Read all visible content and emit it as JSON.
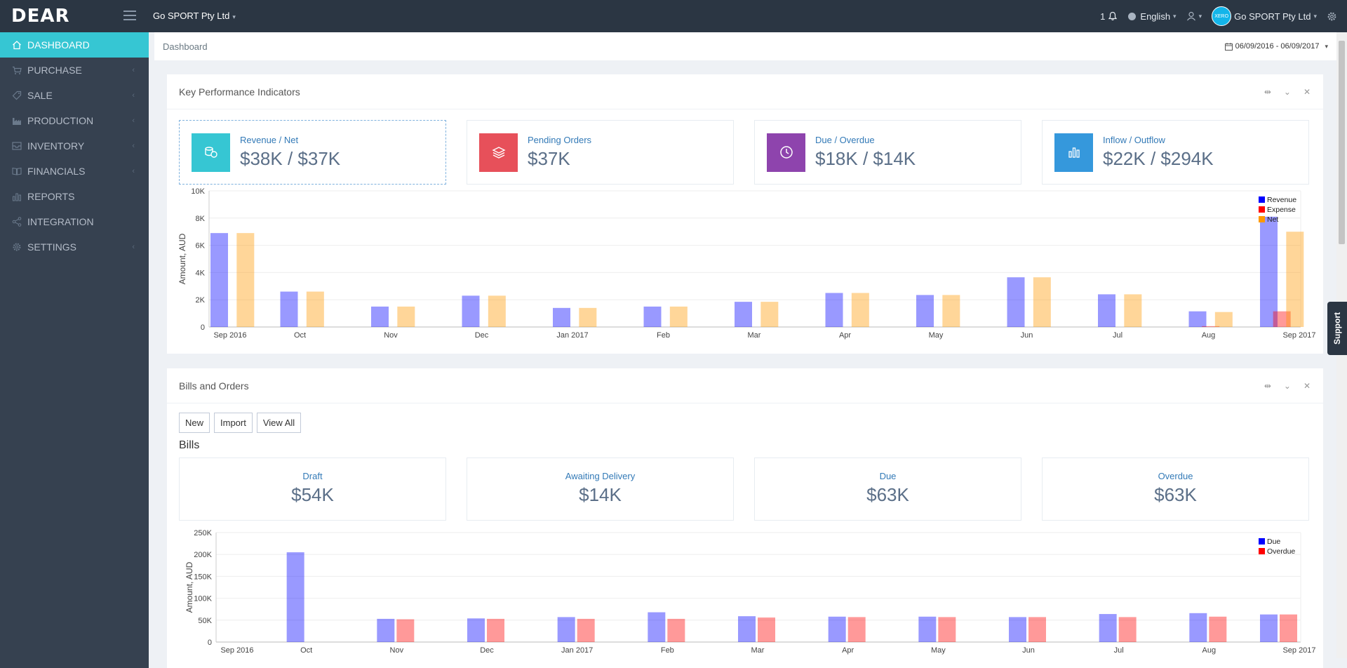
{
  "app": {
    "logo": "DEAR",
    "company": "Go SPORT Pty Ltd"
  },
  "topbar": {
    "notifications": "1",
    "language": "English",
    "avatar_text": "XERO",
    "company": "Go SPORT Pty Ltd"
  },
  "sidebar": {
    "items": [
      {
        "label": "DASHBOARD",
        "icon": "home-icon",
        "active": true
      },
      {
        "label": "PURCHASE",
        "icon": "cart-icon"
      },
      {
        "label": "SALE",
        "icon": "tag-icon"
      },
      {
        "label": "PRODUCTION",
        "icon": "factory-icon"
      },
      {
        "label": "INVENTORY",
        "icon": "inbox-icon"
      },
      {
        "label": "FINANCIALS",
        "icon": "book-icon"
      },
      {
        "label": "REPORTS",
        "icon": "bar-chart-icon"
      },
      {
        "label": "INTEGRATION",
        "icon": "share-icon"
      },
      {
        "label": "SETTINGS",
        "icon": "gear-icon"
      }
    ]
  },
  "breadcrumb": "Dashboard",
  "date_range": "06/09/2016 - 06/09/2017",
  "support": "Support",
  "kpi_panel": {
    "title": "Key Performance Indicators",
    "cards": [
      {
        "label": "Revenue / Net",
        "value": "$38K / $37K",
        "color": "#36c6d3",
        "icon": "coins-icon"
      },
      {
        "label": "Pending Orders",
        "value": "$37K",
        "color": "#e7505a",
        "icon": "layers-icon"
      },
      {
        "label": "Due / Overdue",
        "value": "$18K / $14K",
        "color": "#8e44ad",
        "icon": "clock-icon"
      },
      {
        "label": "Inflow / Outflow",
        "value": "$22K / $294K",
        "color": "#3598dc",
        "icon": "bar-chart-icon"
      }
    ]
  },
  "bills_panel": {
    "title": "Bills and Orders",
    "buttons": {
      "new": "New",
      "import": "Import",
      "view_all": "View All"
    },
    "subtitle": "Bills",
    "stats": [
      {
        "label": "Draft",
        "value": "$54K"
      },
      {
        "label": "Awaiting Delivery",
        "value": "$14K"
      },
      {
        "label": "Due",
        "value": "$63K"
      },
      {
        "label": "Overdue",
        "value": "$63K"
      }
    ]
  },
  "chart_data": [
    {
      "type": "bar",
      "ylabel": "Amount, AUD",
      "ylim": [
        0,
        10000
      ],
      "yticks": [
        "0",
        "2K",
        "4K",
        "6K",
        "8K",
        "10K"
      ],
      "categories": [
        "Sep 2016",
        "Oct",
        "Nov",
        "Dec",
        "Jan 2017",
        "Feb",
        "Mar",
        "Apr",
        "May",
        "Jun",
        "Jul",
        "Aug",
        "Sep 2017"
      ],
      "legend": "top-right",
      "series": [
        {
          "name": "Revenue",
          "color": "#0000ff",
          "values": [
            6900,
            2600,
            1500,
            2300,
            1400,
            1500,
            1850,
            2500,
            2350,
            3650,
            2400,
            1150,
            8100
          ]
        },
        {
          "name": "Expense",
          "color": "#ff0000",
          "values": [
            0,
            0,
            0,
            0,
            0,
            0,
            0,
            0,
            0,
            0,
            0,
            60,
            1150
          ]
        },
        {
          "name": "Net",
          "color": "#ff9900",
          "values": [
            6900,
            2600,
            1500,
            2300,
            1400,
            1500,
            1850,
            2500,
            2350,
            3650,
            2400,
            1100,
            7000
          ]
        }
      ]
    },
    {
      "type": "bar",
      "ylabel": "Amount, AUD",
      "ylim": [
        0,
        250000
      ],
      "yticks": [
        "0",
        "50K",
        "100K",
        "150K",
        "200K",
        "250K"
      ],
      "categories": [
        "Sep 2016",
        "Oct",
        "Nov",
        "Dec",
        "Jan 2017",
        "Feb",
        "Mar",
        "Apr",
        "May",
        "Jun",
        "Jul",
        "Aug",
        "Sep 2017"
      ],
      "legend": "top-right",
      "series": [
        {
          "name": "Due",
          "color": "#0000ff",
          "values": [
            0,
            205000,
            53000,
            54000,
            57000,
            68000,
            59000,
            58000,
            58000,
            57000,
            64000,
            66000,
            63000
          ]
        },
        {
          "name": "Overdue",
          "color": "#ff0000",
          "values": [
            0,
            0,
            52000,
            53000,
            53000,
            53000,
            56000,
            57000,
            57000,
            57000,
            57000,
            58000,
            63000
          ]
        }
      ]
    }
  ]
}
